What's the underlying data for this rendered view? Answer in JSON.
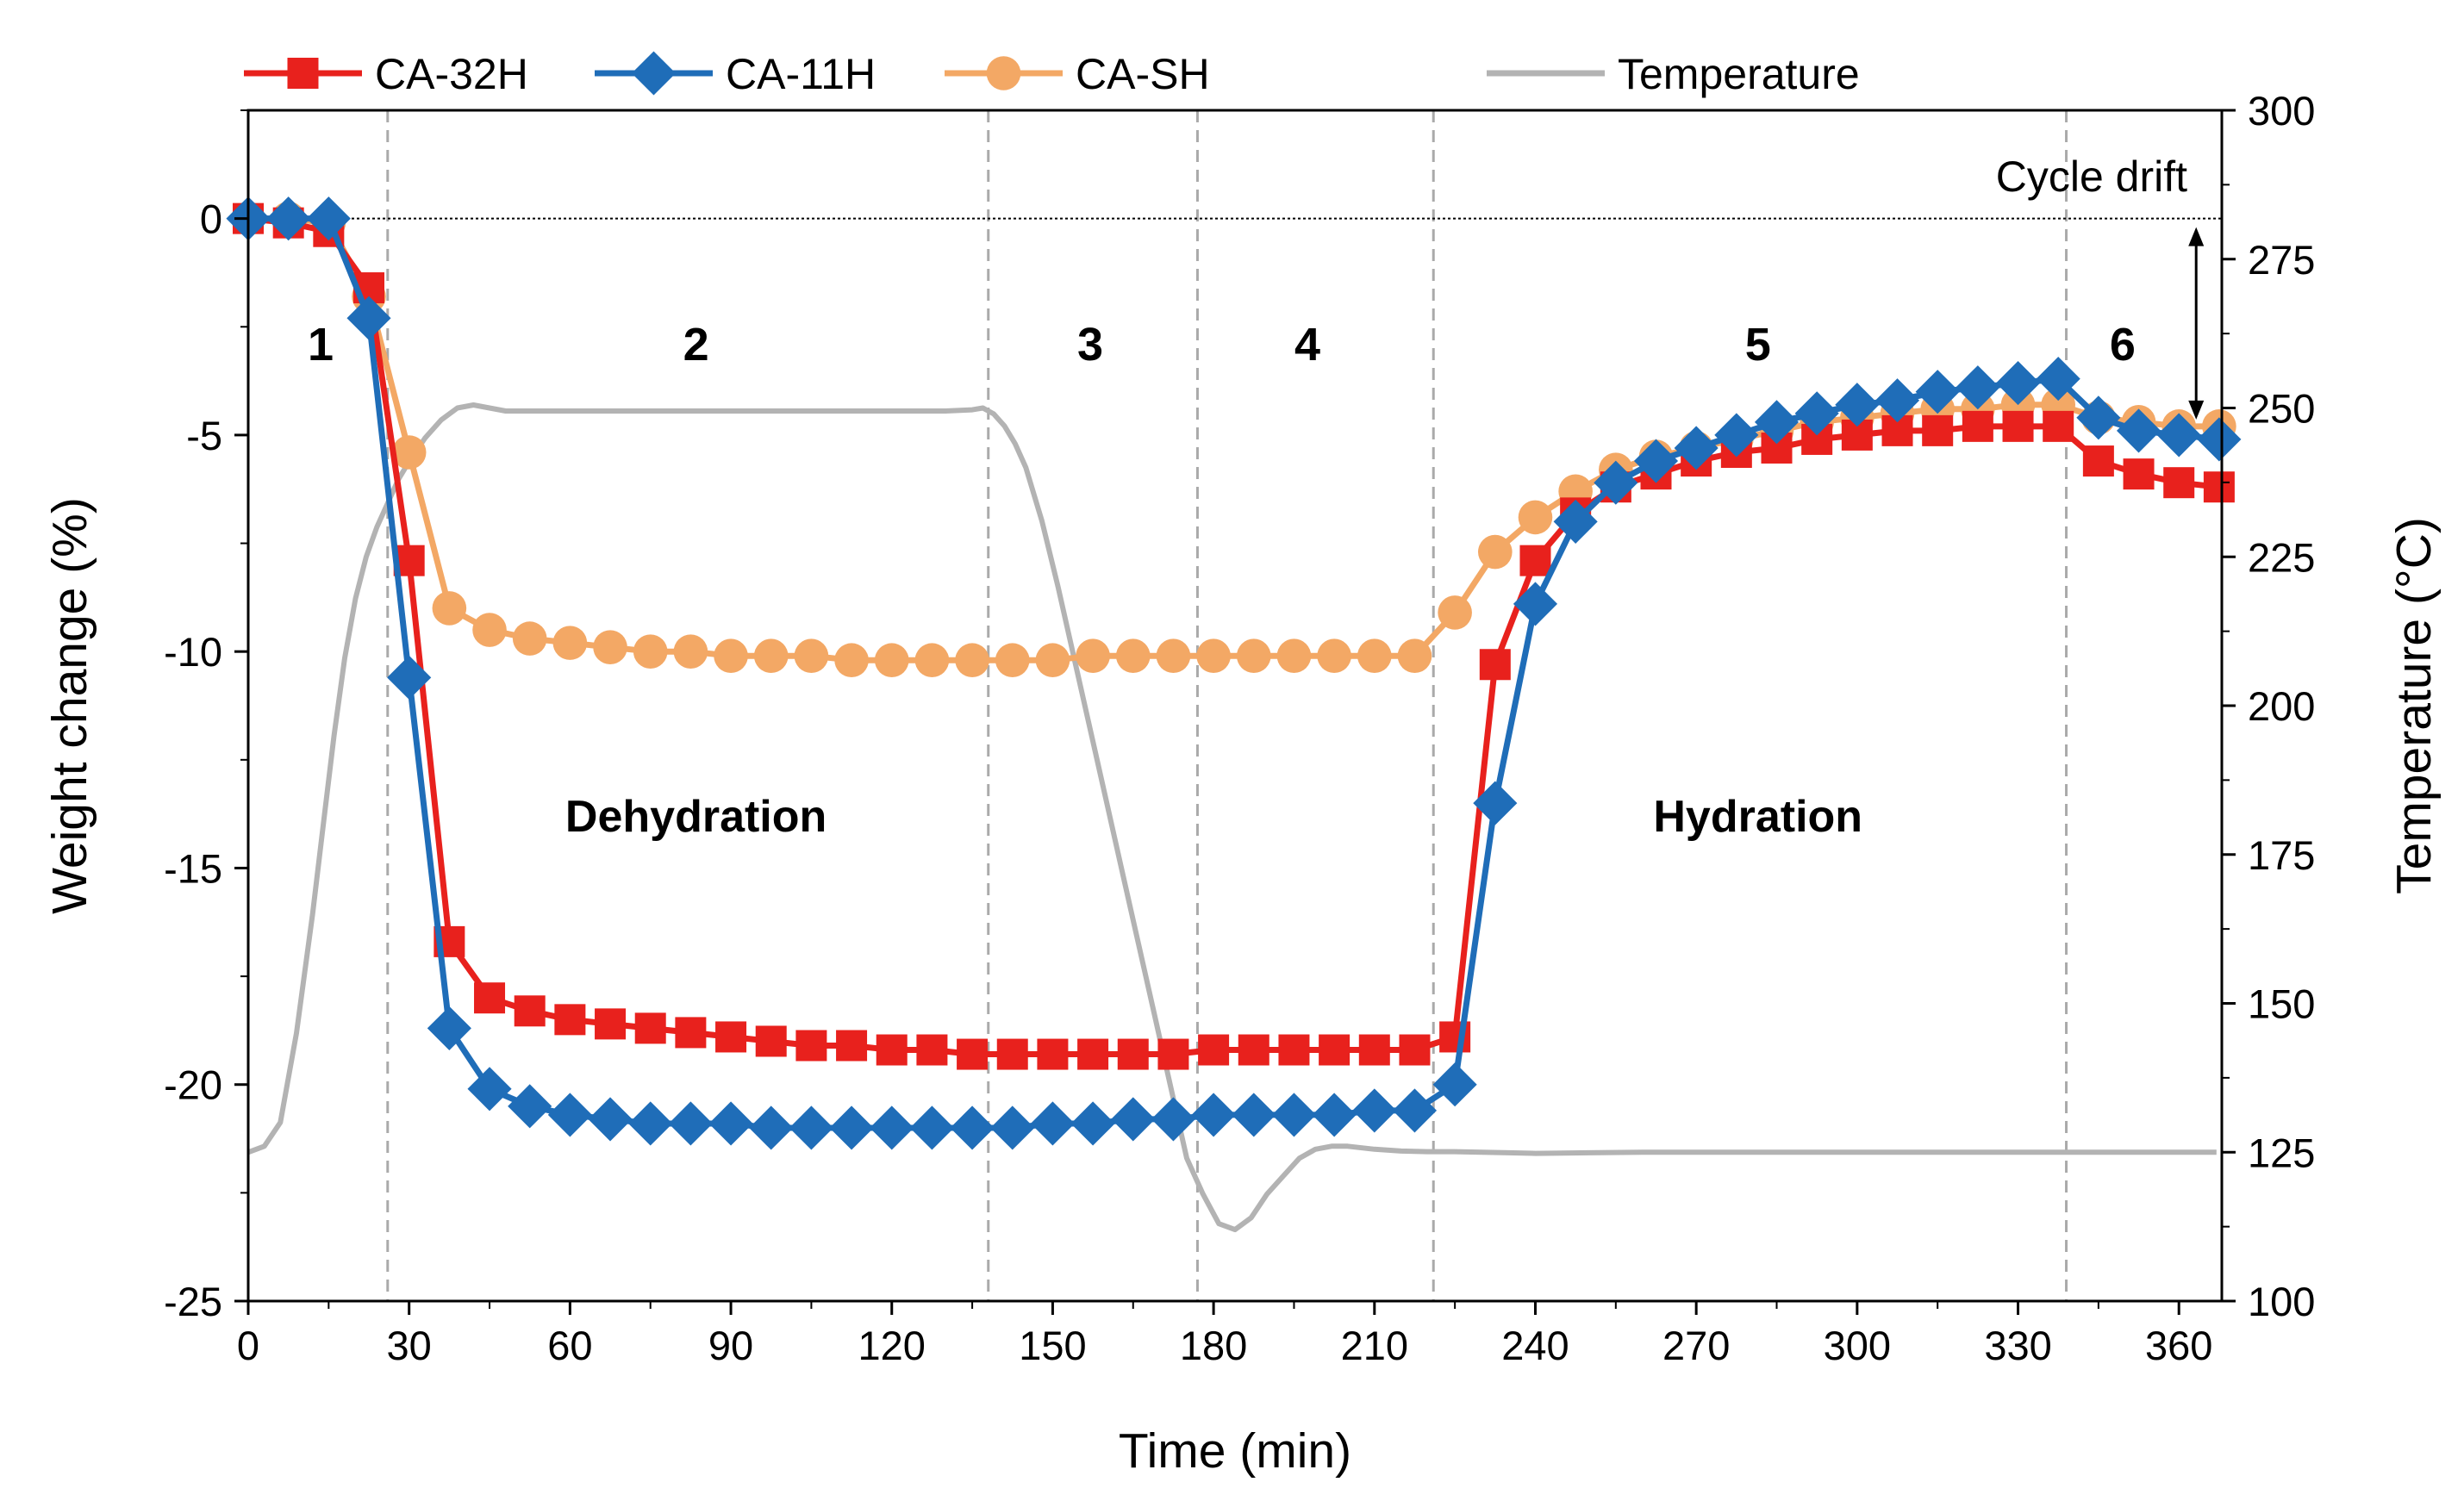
{
  "chart_data": {
    "type": "line",
    "x_axis": {
      "label": "Time (min)",
      "range": [
        0,
        368
      ],
      "ticks": [
        0,
        30,
        60,
        90,
        120,
        150,
        180,
        210,
        240,
        270,
        300,
        330,
        360
      ]
    },
    "y_axis": {
      "label": "Weight change (%)",
      "range": [
        -25,
        2.5
      ],
      "ticks": [
        0,
        -5,
        -10,
        -15,
        -20,
        -25
      ]
    },
    "y2_axis": {
      "label": "Temperature (°C)",
      "range": [
        100,
        300
      ],
      "ticks": [
        100,
        125,
        150,
        175,
        200,
        225,
        250,
        275,
        300
      ]
    },
    "series": [
      {
        "name": "CA-32H",
        "axis": "left",
        "color": "#e8211d",
        "marker": "square",
        "x": [
          0,
          7.5,
          15,
          22.5,
          30,
          37.5,
          45,
          52.5,
          60,
          67.5,
          75,
          82.5,
          90,
          97.5,
          105,
          112.5,
          120,
          127.5,
          135,
          142.5,
          150,
          157.5,
          165,
          172.5,
          180,
          187.5,
          195,
          202.5,
          210,
          217.5,
          225,
          232.5,
          240,
          247.5,
          255,
          262.5,
          270,
          277.5,
          285,
          292.5,
          300,
          307.5,
          315,
          322.5,
          330,
          337.5,
          345,
          352.5,
          360,
          367.5
        ],
        "y": [
          0,
          -0.1,
          -0.3,
          -1.6,
          -7.9,
          -16.7,
          -18.0,
          -18.3,
          -18.5,
          -18.6,
          -18.7,
          -18.8,
          -18.9,
          -19.0,
          -19.1,
          -19.1,
          -19.2,
          -19.2,
          -19.3,
          -19.3,
          -19.3,
          -19.3,
          -19.3,
          -19.3,
          -19.2,
          -19.2,
          -19.2,
          -19.2,
          -19.2,
          -19.2,
          -18.9,
          -10.3,
          -7.9,
          -6.8,
          -6.2,
          -5.9,
          -5.6,
          -5.4,
          -5.3,
          -5.1,
          -5.0,
          -4.9,
          -4.9,
          -4.8,
          -4.8,
          -4.8,
          -5.6,
          -5.9,
          -6.1,
          -6.2
        ]
      },
      {
        "name": "CA-11H",
        "axis": "left",
        "color": "#1f6db8",
        "marker": "diamond",
        "x": [
          0,
          7.5,
          15,
          22.5,
          30,
          37.5,
          45,
          52.5,
          60,
          67.5,
          75,
          82.5,
          90,
          97.5,
          105,
          112.5,
          120,
          127.5,
          135,
          142.5,
          150,
          157.5,
          165,
          172.5,
          180,
          187.5,
          195,
          202.5,
          210,
          217.5,
          225,
          232.5,
          240,
          247.5,
          255,
          262.5,
          270,
          277.5,
          285,
          292.5,
          300,
          307.5,
          315,
          322.5,
          330,
          337.5,
          345,
          352.5,
          360,
          367.5
        ],
        "y": [
          0,
          0,
          0,
          -2.3,
          -10.6,
          -18.7,
          -20.1,
          -20.5,
          -20.7,
          -20.8,
          -20.9,
          -20.9,
          -20.9,
          -21.0,
          -21.0,
          -21.0,
          -21.0,
          -21.0,
          -21.0,
          -21.0,
          -20.9,
          -20.9,
          -20.8,
          -20.8,
          -20.7,
          -20.7,
          -20.7,
          -20.7,
          -20.6,
          -20.6,
          -20.0,
          -13.5,
          -8.9,
          -7.0,
          -6.1,
          -5.6,
          -5.3,
          -5.0,
          -4.7,
          -4.5,
          -4.3,
          -4.2,
          -4.0,
          -3.9,
          -3.8,
          -3.7,
          -4.6,
          -4.9,
          -5.0,
          -5.1
        ]
      },
      {
        "name": "CA-SH",
        "axis": "left",
        "color": "#f3a865",
        "marker": "circle",
        "x": [
          0,
          7.5,
          15,
          22.5,
          30,
          37.5,
          45,
          52.5,
          60,
          67.5,
          75,
          82.5,
          90,
          97.5,
          105,
          112.5,
          120,
          127.5,
          135,
          142.5,
          150,
          157.5,
          165,
          172.5,
          180,
          187.5,
          195,
          202.5,
          210,
          217.5,
          225,
          232.5,
          240,
          247.5,
          255,
          262.5,
          270,
          277.5,
          285,
          292.5,
          300,
          307.5,
          315,
          322.5,
          330,
          337.5,
          345,
          352.5,
          360,
          367.5
        ],
        "y": [
          0,
          0,
          -0.1,
          -1.8,
          -5.4,
          -9.0,
          -9.5,
          -9.7,
          -9.8,
          -9.9,
          -10.0,
          -10.0,
          -10.1,
          -10.1,
          -10.1,
          -10.2,
          -10.2,
          -10.2,
          -10.2,
          -10.2,
          -10.2,
          -10.1,
          -10.1,
          -10.1,
          -10.1,
          -10.1,
          -10.1,
          -10.1,
          -10.1,
          -10.1,
          -9.1,
          -7.7,
          -6.9,
          -6.3,
          -5.8,
          -5.5,
          -5.3,
          -5.1,
          -4.9,
          -4.7,
          -4.6,
          -4.5,
          -4.4,
          -4.4,
          -4.3,
          -4.3,
          -4.6,
          -4.7,
          -4.8,
          -4.8
        ]
      },
      {
        "name": "Temperature",
        "axis": "right",
        "color": "#b3b3b3",
        "marker": "none",
        "x": [
          0,
          3,
          6,
          9,
          12,
          14,
          16,
          18,
          20,
          22,
          24,
          26,
          28,
          30,
          33,
          36,
          39,
          42,
          45,
          48,
          51,
          55,
          60,
          70,
          80,
          90,
          100,
          110,
          120,
          130,
          135,
          137,
          139,
          141,
          143,
          145,
          148,
          151,
          154,
          157,
          160,
          163,
          166,
          169,
          172,
          175,
          178,
          181,
          184,
          187,
          190,
          193,
          196,
          199,
          202,
          205,
          210,
          215,
          220,
          225,
          230,
          235,
          240,
          250,
          260,
          270,
          280,
          290,
          300,
          310,
          320,
          330,
          340,
          350,
          360,
          367
        ],
        "y": [
          125,
          126,
          130,
          145,
          165,
          180,
          195,
          208,
          218,
          225,
          230,
          234,
          238,
          241,
          245,
          248,
          250,
          250.5,
          250,
          249.5,
          249.5,
          249.5,
          249.5,
          249.5,
          249.5,
          249.5,
          249.5,
          249.5,
          249.5,
          249.5,
          249.7,
          250,
          249,
          247,
          244,
          240,
          231,
          220,
          208,
          196,
          184,
          172,
          160,
          148,
          136,
          124,
          118,
          113,
          112,
          114,
          118,
          121,
          124,
          125.5,
          126,
          126,
          125.5,
          125.2,
          125.1,
          125.1,
          125,
          124.9,
          124.8,
          124.9,
          125,
          125,
          125,
          125,
          125,
          125,
          125,
          125,
          125,
          125,
          125,
          125
        ]
      }
    ],
    "phase_boundaries": [
      26,
      138,
      177,
      221,
      339
    ],
    "phases": [
      {
        "label": "1",
        "x": 13.5
      },
      {
        "label": "2",
        "x": 83.5
      },
      {
        "label": "3",
        "x": 157
      },
      {
        "label": "4",
        "x": 197.5
      },
      {
        "label": "5",
        "x": 281.5
      },
      {
        "label": "6",
        "x": 349.5
      }
    ],
    "region_labels": [
      {
        "text": "Dehydration",
        "x": 83.5,
        "y": -13.8
      },
      {
        "text": "Hydration",
        "x": 281.5,
        "y": -13.8
      }
    ],
    "reference_line_y": 0,
    "cycle_drift": {
      "text": "Cycle drift",
      "x": 360,
      "from": 0,
      "to": -4.8
    },
    "legend_position": "top"
  }
}
